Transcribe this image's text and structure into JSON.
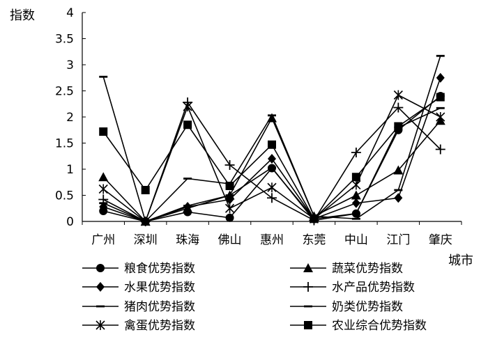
{
  "chart_data": {
    "type": "line",
    "ylabel": "指数",
    "xlabel": "城市",
    "ylim": [
      0,
      4
    ],
    "yticks": [
      "0",
      "0.5",
      "1",
      "1.5",
      "2",
      "2.5",
      "3",
      "3.5",
      "4"
    ],
    "categories": [
      "广州",
      "深圳",
      "珠海",
      "佛山",
      "惠州",
      "东莞",
      "中山",
      "江门",
      "肇庆"
    ],
    "legend_position": "bottom",
    "grid": false,
    "series": [
      {
        "name": "粮食优势指数",
        "marker": "circle",
        "values": [
          0.2,
          0.0,
          0.18,
          0.07,
          1.02,
          0.05,
          0.15,
          1.75,
          2.4
        ]
      },
      {
        "name": "蔬菜优势指数",
        "marker": "triangle",
        "values": [
          0.85,
          0.0,
          0.25,
          0.5,
          1.98,
          0.1,
          0.5,
          0.98,
          1.93
        ]
      },
      {
        "name": "水果优势指数",
        "marker": "diamond",
        "values": [
          0.28,
          0.0,
          0.28,
          0.42,
          1.2,
          0.05,
          0.35,
          0.45,
          2.75
        ]
      },
      {
        "name": "水产品优势指数",
        "marker": "plus",
        "values": [
          0.42,
          0.0,
          2.28,
          1.08,
          0.45,
          0.02,
          1.32,
          2.18,
          1.38
        ]
      },
      {
        "name": "猪肉优势指数",
        "marker": "dash",
        "values": [
          2.77,
          0.0,
          0.82,
          0.72,
          2.03,
          0.1,
          0.05,
          0.6,
          3.17
        ]
      },
      {
        "name": "奶类优势指数",
        "marker": "dash",
        "values": [
          0.35,
          0.0,
          0.3,
          0.5,
          1.03,
          0.02,
          0.15,
          1.8,
          2.17
        ]
      },
      {
        "name": "禽蛋优势指数",
        "marker": "asterisk",
        "values": [
          0.62,
          0.0,
          2.2,
          0.25,
          0.65,
          0.05,
          0.7,
          2.42,
          2.0
        ]
      },
      {
        "name": "农业综合优势指数",
        "marker": "square",
        "values": [
          1.72,
          0.6,
          1.85,
          0.68,
          1.47,
          0.05,
          0.85,
          1.82,
          2.38
        ]
      }
    ]
  }
}
